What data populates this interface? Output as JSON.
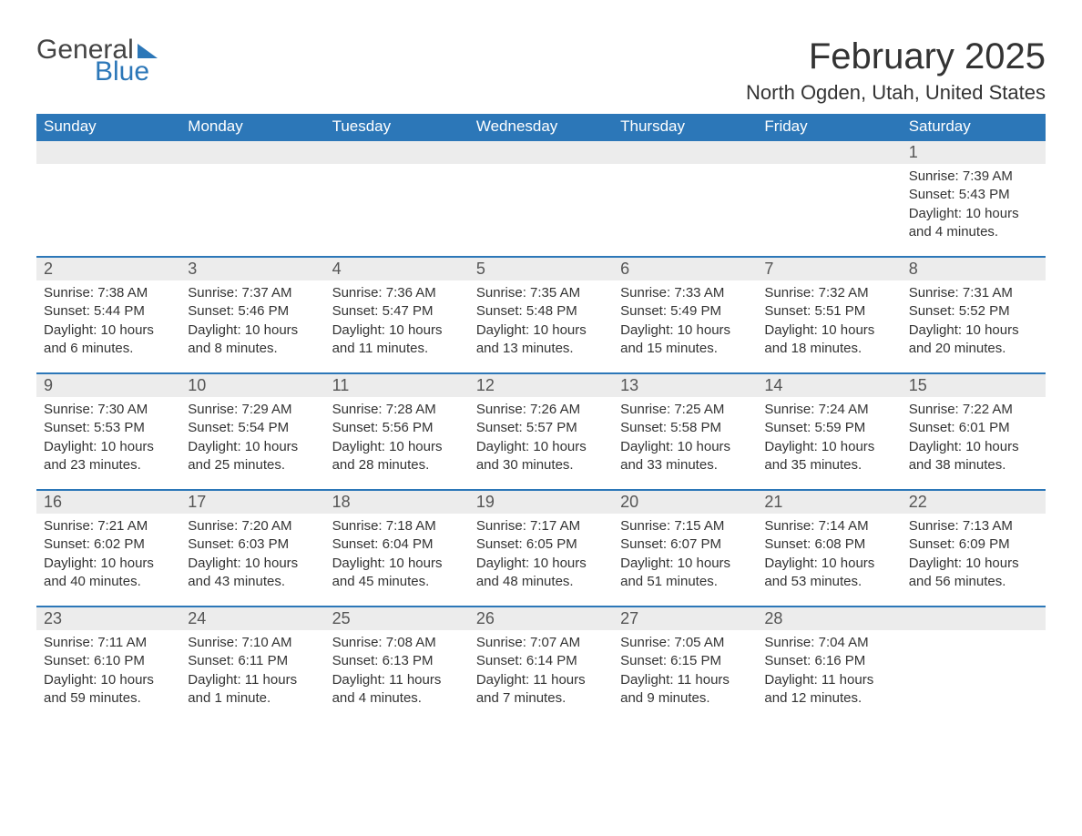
{
  "logo": {
    "text1": "General",
    "text2": "Blue",
    "color_dark": "#444444",
    "color_blue": "#2c77b8"
  },
  "title": "February 2025",
  "location": "North Ogden, Utah, United States",
  "header_bg": "#2c77b8",
  "header_text_color": "#ffffff",
  "daynum_bg": "#ececec",
  "week_border_color": "#2c77b8",
  "columns": [
    "Sunday",
    "Monday",
    "Tuesday",
    "Wednesday",
    "Thursday",
    "Friday",
    "Saturday"
  ],
  "weeks": [
    [
      null,
      null,
      null,
      null,
      null,
      null,
      {
        "d": "1",
        "sr": "7:39 AM",
        "ss": "5:43 PM",
        "dl": "10 hours and 4 minutes."
      }
    ],
    [
      {
        "d": "2",
        "sr": "7:38 AM",
        "ss": "5:44 PM",
        "dl": "10 hours and 6 minutes."
      },
      {
        "d": "3",
        "sr": "7:37 AM",
        "ss": "5:46 PM",
        "dl": "10 hours and 8 minutes."
      },
      {
        "d": "4",
        "sr": "7:36 AM",
        "ss": "5:47 PM",
        "dl": "10 hours and 11 minutes."
      },
      {
        "d": "5",
        "sr": "7:35 AM",
        "ss": "5:48 PM",
        "dl": "10 hours and 13 minutes."
      },
      {
        "d": "6",
        "sr": "7:33 AM",
        "ss": "5:49 PM",
        "dl": "10 hours and 15 minutes."
      },
      {
        "d": "7",
        "sr": "7:32 AM",
        "ss": "5:51 PM",
        "dl": "10 hours and 18 minutes."
      },
      {
        "d": "8",
        "sr": "7:31 AM",
        "ss": "5:52 PM",
        "dl": "10 hours and 20 minutes."
      }
    ],
    [
      {
        "d": "9",
        "sr": "7:30 AM",
        "ss": "5:53 PM",
        "dl": "10 hours and 23 minutes."
      },
      {
        "d": "10",
        "sr": "7:29 AM",
        "ss": "5:54 PM",
        "dl": "10 hours and 25 minutes."
      },
      {
        "d": "11",
        "sr": "7:28 AM",
        "ss": "5:56 PM",
        "dl": "10 hours and 28 minutes."
      },
      {
        "d": "12",
        "sr": "7:26 AM",
        "ss": "5:57 PM",
        "dl": "10 hours and 30 minutes."
      },
      {
        "d": "13",
        "sr": "7:25 AM",
        "ss": "5:58 PM",
        "dl": "10 hours and 33 minutes."
      },
      {
        "d": "14",
        "sr": "7:24 AM",
        "ss": "5:59 PM",
        "dl": "10 hours and 35 minutes."
      },
      {
        "d": "15",
        "sr": "7:22 AM",
        "ss": "6:01 PM",
        "dl": "10 hours and 38 minutes."
      }
    ],
    [
      {
        "d": "16",
        "sr": "7:21 AM",
        "ss": "6:02 PM",
        "dl": "10 hours and 40 minutes."
      },
      {
        "d": "17",
        "sr": "7:20 AM",
        "ss": "6:03 PM",
        "dl": "10 hours and 43 minutes."
      },
      {
        "d": "18",
        "sr": "7:18 AM",
        "ss": "6:04 PM",
        "dl": "10 hours and 45 minutes."
      },
      {
        "d": "19",
        "sr": "7:17 AM",
        "ss": "6:05 PM",
        "dl": "10 hours and 48 minutes."
      },
      {
        "d": "20",
        "sr": "7:15 AM",
        "ss": "6:07 PM",
        "dl": "10 hours and 51 minutes."
      },
      {
        "d": "21",
        "sr": "7:14 AM",
        "ss": "6:08 PM",
        "dl": "10 hours and 53 minutes."
      },
      {
        "d": "22",
        "sr": "7:13 AM",
        "ss": "6:09 PM",
        "dl": "10 hours and 56 minutes."
      }
    ],
    [
      {
        "d": "23",
        "sr": "7:11 AM",
        "ss": "6:10 PM",
        "dl": "10 hours and 59 minutes."
      },
      {
        "d": "24",
        "sr": "7:10 AM",
        "ss": "6:11 PM",
        "dl": "11 hours and 1 minute."
      },
      {
        "d": "25",
        "sr": "7:08 AM",
        "ss": "6:13 PM",
        "dl": "11 hours and 4 minutes."
      },
      {
        "d": "26",
        "sr": "7:07 AM",
        "ss": "6:14 PM",
        "dl": "11 hours and 7 minutes."
      },
      {
        "d": "27",
        "sr": "7:05 AM",
        "ss": "6:15 PM",
        "dl": "11 hours and 9 minutes."
      },
      {
        "d": "28",
        "sr": "7:04 AM",
        "ss": "6:16 PM",
        "dl": "11 hours and 12 minutes."
      },
      null
    ]
  ],
  "labels": {
    "sunrise": "Sunrise: ",
    "sunset": "Sunset: ",
    "daylight": "Daylight: "
  }
}
